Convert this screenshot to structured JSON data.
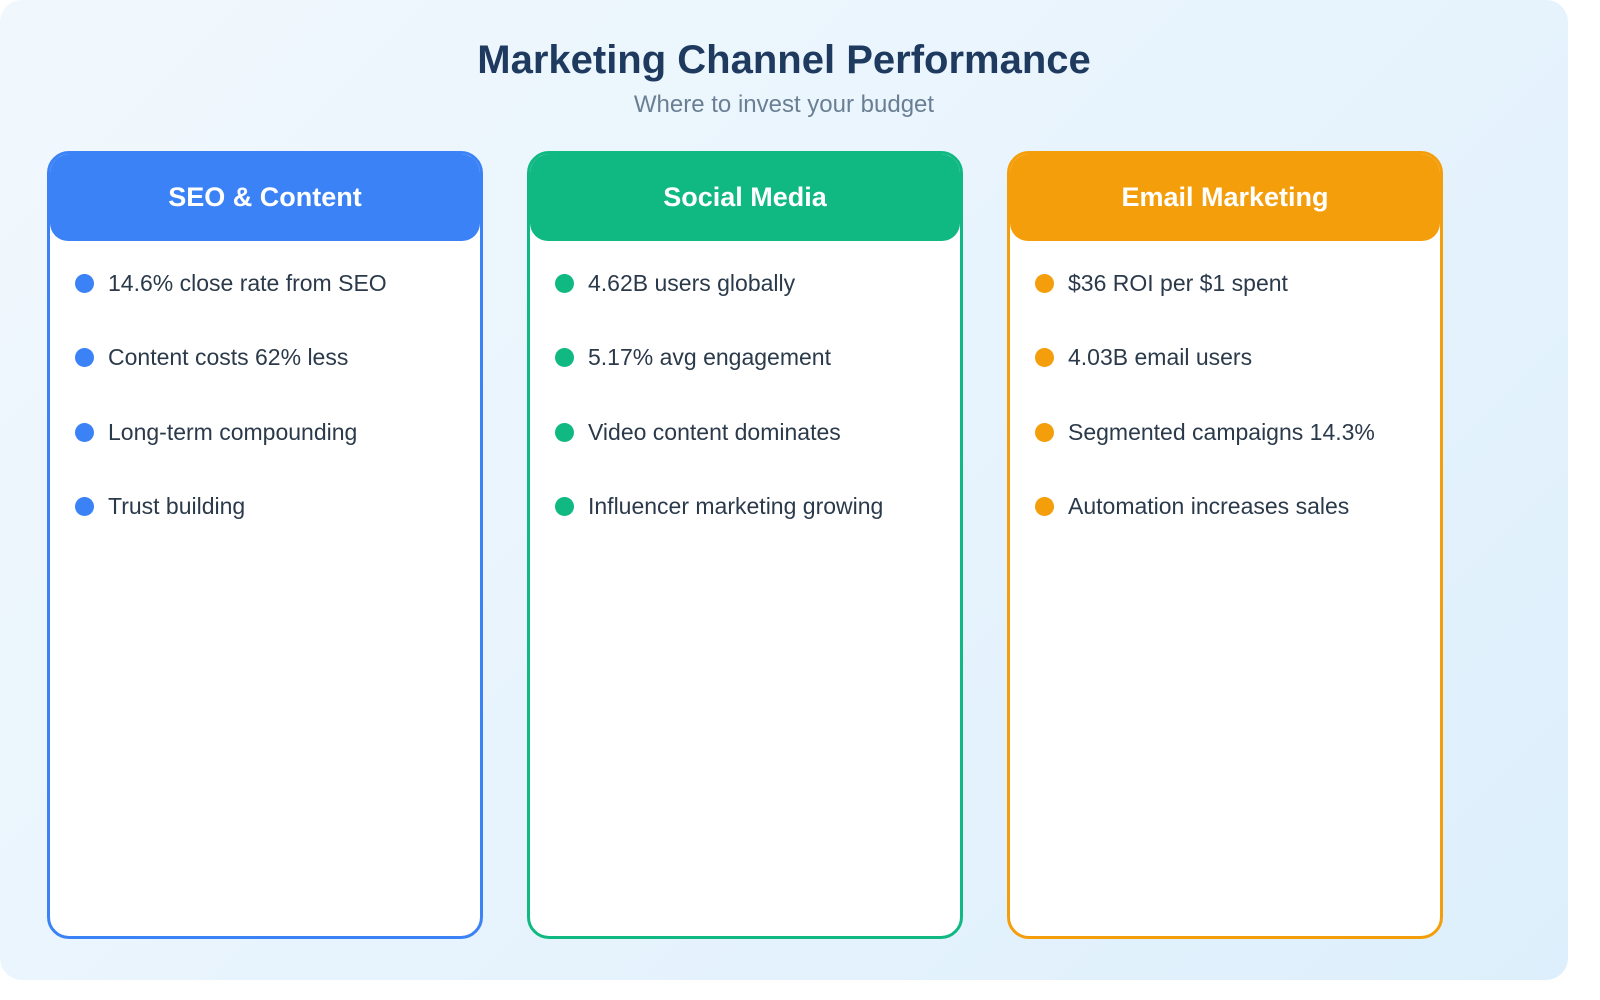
{
  "header": {
    "title": "Marketing Channel Performance",
    "subtitle": "Where to invest your budget"
  },
  "channels": [
    {
      "title": "SEO & Content",
      "color": "#3b82f6",
      "items": [
        "14.6% close rate from SEO",
        "Content costs 62% less",
        "Long-term compounding",
        "Trust building"
      ]
    },
    {
      "title": "Social Media",
      "color": "#10b981",
      "items": [
        "4.62B users globally",
        "5.17% avg engagement",
        "Video content dominates",
        "Influencer marketing growing"
      ]
    },
    {
      "title": "Email Marketing",
      "color": "#f59e0b",
      "items": [
        "$36 ROI per $1 spent",
        "4.03B email users",
        "Segmented campaigns 14.3%",
        "Automation increases sales"
      ]
    }
  ]
}
